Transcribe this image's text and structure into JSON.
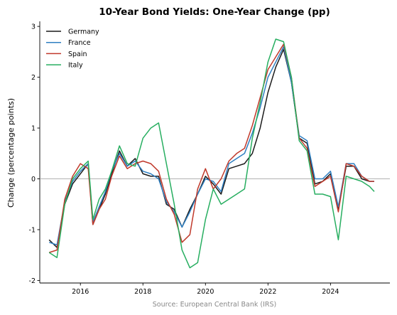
{
  "chart_data": {
    "type": "line",
    "title": "10-Year Bond Yields: One-Year Change (pp)",
    "xlabel": "",
    "ylabel": "Change (percentage points)",
    "source": "Source: European Central Bank (IRS)",
    "xlim": [
      2014.7,
      2025.9
    ],
    "ylim": [
      -2.05,
      3.1
    ],
    "xticks": [
      2016,
      2018,
      2020,
      2022,
      2024
    ],
    "yticks": [
      -2,
      -1,
      0,
      1,
      2,
      3
    ],
    "zero_line": true,
    "grid": false,
    "legend_position": "top-left",
    "series": [
      {
        "name": "Germany",
        "color": "#1a1a1a",
        "x": [
          2015.0,
          2015.25,
          2015.5,
          2015.75,
          2016.0,
          2016.25,
          2016.4,
          2016.6,
          2016.8,
          2017.0,
          2017.25,
          2017.5,
          2017.75,
          2018.0,
          2018.25,
          2018.5,
          2018.75,
          2019.0,
          2019.25,
          2019.5,
          2019.75,
          2020.0,
          2020.25,
          2020.5,
          2020.75,
          2021.0,
          2021.25,
          2021.5,
          2021.75,
          2022.0,
          2022.25,
          2022.5,
          2022.75,
          2023.0,
          2023.25,
          2023.5,
          2023.75,
          2024.0,
          2024.25,
          2024.5,
          2024.75,
          2025.0,
          2025.25,
          2025.4
        ],
        "y": [
          -1.2,
          -1.35,
          -0.5,
          -0.1,
          0.1,
          0.3,
          -0.9,
          -0.6,
          -0.3,
          0.1,
          0.55,
          0.25,
          0.4,
          0.1,
          0.05,
          0.05,
          -0.5,
          -0.6,
          -0.95,
          -0.6,
          -0.3,
          0.05,
          -0.1,
          -0.3,
          0.2,
          0.25,
          0.3,
          0.5,
          1.0,
          1.7,
          2.2,
          2.55,
          1.9,
          0.8,
          0.7,
          -0.1,
          -0.05,
          0.1,
          -0.6,
          0.25,
          0.25,
          0.0,
          -0.05,
          -0.05
        ]
      },
      {
        "name": "France",
        "color": "#2f7fc1",
        "x": [
          2015.0,
          2015.25,
          2015.5,
          2015.75,
          2016.0,
          2016.25,
          2016.4,
          2016.6,
          2016.8,
          2017.0,
          2017.25,
          2017.5,
          2017.75,
          2018.0,
          2018.25,
          2018.5,
          2018.75,
          2019.0,
          2019.25,
          2019.5,
          2019.75,
          2020.0,
          2020.25,
          2020.5,
          2020.75,
          2021.0,
          2021.25,
          2021.5,
          2021.75,
          2022.0,
          2022.25,
          2022.5,
          2022.75,
          2023.0,
          2023.25,
          2023.5,
          2023.75,
          2024.0,
          2024.25,
          2024.5,
          2024.75,
          2025.0,
          2025.25,
          2025.4
        ],
        "y": [
          -1.25,
          -1.3,
          -0.45,
          -0.05,
          0.15,
          0.3,
          -0.85,
          -0.55,
          -0.25,
          0.15,
          0.5,
          0.25,
          0.35,
          0.15,
          0.1,
          0.0,
          -0.45,
          -0.65,
          -0.95,
          -0.65,
          -0.3,
          0.0,
          -0.05,
          -0.25,
          0.3,
          0.4,
          0.5,
          0.9,
          1.4,
          2.0,
          2.3,
          2.6,
          1.9,
          0.85,
          0.75,
          0.0,
          0.0,
          0.15,
          -0.55,
          0.3,
          0.3,
          0.05,
          -0.05,
          -0.05
        ]
      },
      {
        "name": "Spain",
        "color": "#c0392b",
        "x": [
          2015.0,
          2015.25,
          2015.5,
          2015.75,
          2016.0,
          2016.25,
          2016.4,
          2016.6,
          2016.8,
          2017.0,
          2017.25,
          2017.5,
          2017.75,
          2018.0,
          2018.25,
          2018.5,
          2018.75,
          2019.0,
          2019.25,
          2019.5,
          2019.75,
          2020.0,
          2020.25,
          2020.5,
          2020.75,
          2021.0,
          2021.25,
          2021.5,
          2021.75,
          2022.0,
          2022.25,
          2022.5,
          2022.75,
          2023.0,
          2023.25,
          2023.5,
          2023.75,
          2024.0,
          2024.25,
          2024.5,
          2024.75,
          2025.0,
          2025.25,
          2025.4
        ],
        "y": [
          -1.45,
          -1.4,
          -0.4,
          0.05,
          0.3,
          0.2,
          -0.9,
          -0.6,
          -0.4,
          0.05,
          0.45,
          0.2,
          0.3,
          0.35,
          0.3,
          0.15,
          -0.4,
          -0.7,
          -1.25,
          -1.1,
          -0.2,
          0.2,
          -0.2,
          0.0,
          0.35,
          0.5,
          0.6,
          1.05,
          1.6,
          2.15,
          2.4,
          2.65,
          2.0,
          0.8,
          0.6,
          -0.15,
          -0.05,
          0.05,
          -0.65,
          0.3,
          0.25,
          0.05,
          -0.05,
          -0.05
        ]
      },
      {
        "name": "Italy",
        "color": "#27ae60",
        "x": [
          2015.0,
          2015.25,
          2015.5,
          2015.75,
          2016.0,
          2016.25,
          2016.4,
          2016.6,
          2016.8,
          2017.0,
          2017.25,
          2017.5,
          2017.75,
          2018.0,
          2018.25,
          2018.5,
          2018.75,
          2019.0,
          2019.25,
          2019.5,
          2019.75,
          2020.0,
          2020.25,
          2020.5,
          2020.75,
          2021.0,
          2021.25,
          2021.5,
          2021.75,
          2022.0,
          2022.25,
          2022.5,
          2022.75,
          2023.0,
          2023.25,
          2023.5,
          2023.75,
          2024.0,
          2024.25,
          2024.5,
          2024.75,
          2025.0,
          2025.25,
          2025.4
        ],
        "y": [
          -1.45,
          -1.55,
          -0.5,
          0.0,
          0.2,
          0.35,
          -0.8,
          -0.4,
          -0.2,
          0.15,
          0.65,
          0.3,
          0.25,
          0.8,
          1.0,
          1.1,
          0.3,
          -0.5,
          -1.4,
          -1.75,
          -1.65,
          -0.8,
          -0.2,
          -0.5,
          -0.4,
          -0.3,
          -0.2,
          0.8,
          1.5,
          2.3,
          2.75,
          2.7,
          2.0,
          0.75,
          0.55,
          -0.3,
          -0.3,
          -0.35,
          -1.2,
          0.05,
          0.0,
          -0.05,
          -0.15,
          -0.25
        ]
      }
    ]
  }
}
